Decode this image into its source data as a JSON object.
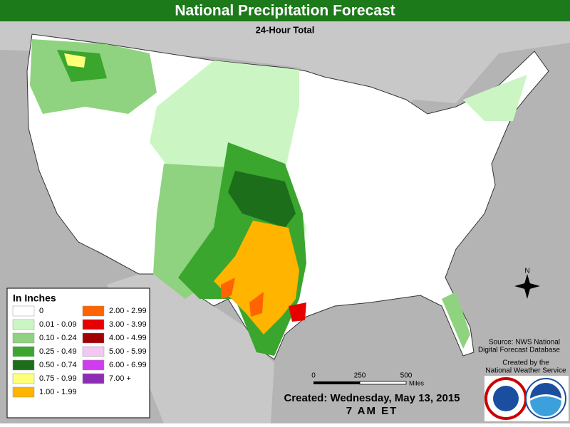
{
  "header": {
    "title": "National Precipitation Forecast",
    "subtitle": "24-Hour Total"
  },
  "legend": {
    "title": "In Inches",
    "items": [
      {
        "label": "0",
        "color": "#ffffff"
      },
      {
        "label": "0.01 - 0.09",
        "color": "#ccf5c4"
      },
      {
        "label": "0.10 - 0.24",
        "color": "#8fd27f"
      },
      {
        "label": "0.25 - 0.49",
        "color": "#3aa62e"
      },
      {
        "label": "0.50 - 0.74",
        "color": "#1d6e1a"
      },
      {
        "label": "0.75 - 0.99",
        "color": "#ffff78"
      },
      {
        "label": "1.00 - 1.99",
        "color": "#ffb400"
      },
      {
        "label": "2.00 - 2.99",
        "color": "#ff6400"
      },
      {
        "label": "3.00 - 3.99",
        "color": "#e60000"
      },
      {
        "label": "4.00 - 4.99",
        "color": "#a00000"
      },
      {
        "label": "5.00 - 5.99",
        "color": "#f2c8f2"
      },
      {
        "label": "6.00 - 6.99",
        "color": "#d23cf0"
      },
      {
        "label": "7.00 +",
        "color": "#8c2db4"
      }
    ]
  },
  "scale_bar": {
    "ticks": [
      0,
      250,
      500
    ],
    "unit": "Miles"
  },
  "compass": "N",
  "source": [
    "Source: NWS National",
    "Digital Forecast Database"
  ],
  "credit": [
    "Created by the",
    "National Weather Service"
  ],
  "created": [
    "Created: Wednesday, May 13, 2015",
    "7 AM ET"
  ]
}
